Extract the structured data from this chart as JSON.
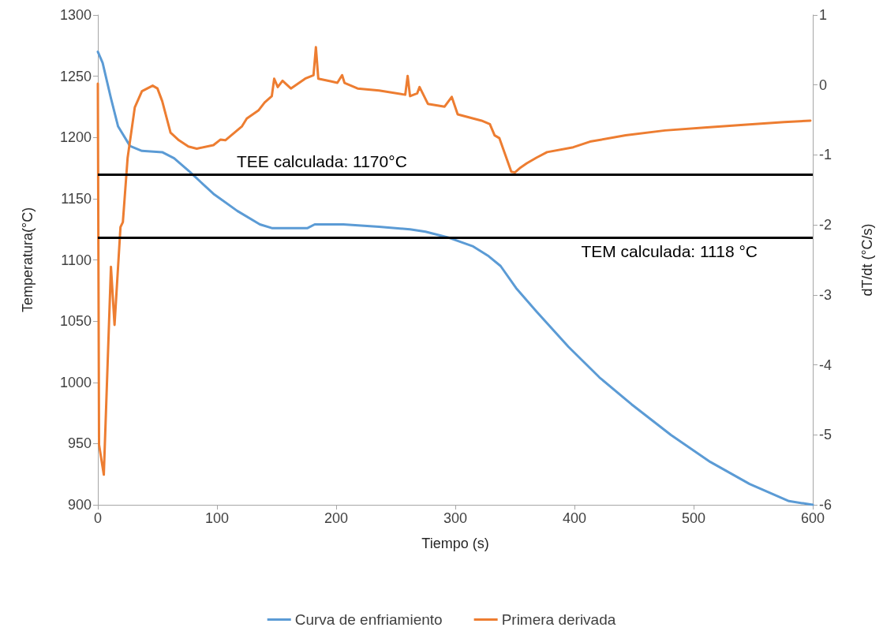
{
  "chart_data": {
    "type": "line",
    "xlabel": "Tiempo (s)",
    "ylabel": "Temperatura(°C)",
    "y2label": "dT/dt (°C/s)",
    "xlim": [
      0,
      600
    ],
    "xticks": [
      0,
      100,
      200,
      300,
      400,
      500,
      600
    ],
    "ylim": [
      900,
      1300
    ],
    "yticks": [
      900,
      950,
      1000,
      1050,
      1100,
      1150,
      1200,
      1250,
      1300
    ],
    "y2lim": [
      -6,
      1
    ],
    "y2ticks": [
      -6,
      -5,
      -4,
      -3,
      -2,
      -1,
      0,
      1
    ],
    "grid": false,
    "legend": "bottom",
    "marker": "none",
    "line_style": "solid",
    "series": [
      {
        "name": "Curva de enfriamiento",
        "color": "#5b9bd5",
        "x": [
          0,
          4,
          11,
          17,
          27,
          37,
          54,
          64,
          77,
          97,
          117,
          136,
          146,
          176,
          182,
          206,
          236,
          262,
          275,
          295,
          315,
          328,
          338,
          351,
          368,
          395,
          421,
          448,
          481,
          514,
          547,
          580,
          600
        ],
        "values": [
          1270,
          1261,
          1232,
          1209,
          1193,
          1189,
          1188,
          1183,
          1172,
          1154,
          1140,
          1129,
          1126,
          1126,
          1129,
          1129,
          1127,
          1125,
          1123,
          1118,
          1111,
          1103,
          1095,
          1077,
          1058,
          1029,
          1004,
          982,
          957,
          935,
          917,
          903,
          900
        ]
      },
      {
        "name": "Primera derivada",
        "color": "#ed7d31",
        "axis": "y2",
        "x": [
          0,
          1,
          5,
          11,
          14,
          19,
          21,
          25,
          31,
          37,
          46,
          50,
          54,
          61,
          68,
          76,
          83,
          97,
          103,
          107,
          121,
          125,
          135,
          140,
          146,
          148,
          151,
          155,
          162,
          174,
          181,
          183,
          185,
          196,
          201,
          205,
          207,
          218,
          236,
          258,
          260,
          262,
          268,
          270,
          277,
          291,
          297,
          302,
          322,
          329,
          333,
          337,
          342,
          347,
          350,
          354,
          360,
          368,
          377,
          399,
          413,
          443,
          476,
          509,
          542,
          576,
          598
        ],
        "values": [
          0.02,
          -5.14,
          -5.57,
          -2.6,
          -3.43,
          -2.03,
          -1.96,
          -1.04,
          -0.32,
          -0.09,
          -0.01,
          -0.05,
          -0.23,
          -0.68,
          -0.79,
          -0.88,
          -0.91,
          -0.86,
          -0.78,
          -0.79,
          -0.59,
          -0.48,
          -0.36,
          -0.25,
          -0.16,
          0.09,
          -0.03,
          0.06,
          -0.05,
          0.09,
          0.14,
          0.54,
          0.09,
          0.05,
          0.03,
          0.14,
          0.03,
          -0.05,
          -0.08,
          -0.14,
          0.13,
          -0.16,
          -0.12,
          -0.03,
          -0.27,
          -0.31,
          -0.17,
          -0.42,
          -0.51,
          -0.56,
          -0.72,
          -0.76,
          -1.0,
          -1.24,
          -1.25,
          -1.19,
          -1.12,
          -1.04,
          -0.96,
          -0.89,
          -0.81,
          -0.72,
          -0.65,
          -0.61,
          -0.57,
          -0.53,
          -0.51
        ]
      }
    ],
    "ref_lines": [
      {
        "axis": "y",
        "value": 1170,
        "label": "TEE calculada: 1170°C",
        "color": "#000000"
      },
      {
        "axis": "y",
        "value": 1118,
        "label": "TEM calculada: 1118 °C",
        "color": "#000000"
      }
    ]
  }
}
